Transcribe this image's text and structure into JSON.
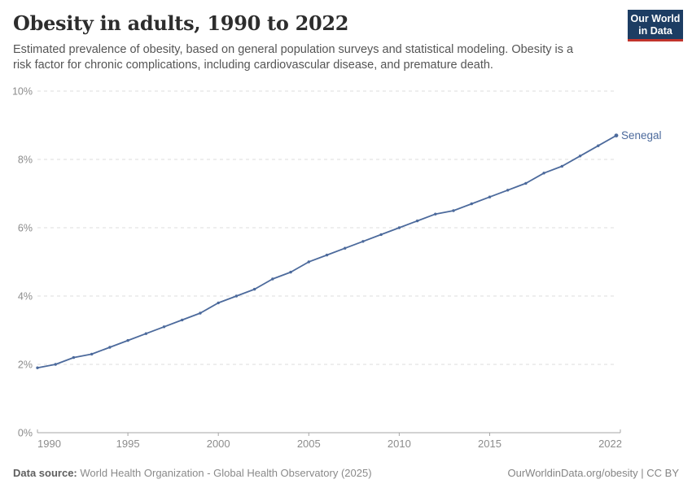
{
  "header": {
    "title": "Obesity in adults, 1990 to 2022",
    "subtitle_line1": "Estimated prevalence of obesity, based on general population surveys and statistical modeling. Obesity is a",
    "subtitle_line2": "risk factor for chronic complications, including cardiovascular disease, and premature death.",
    "logo_line1": "Our World",
    "logo_line2": "in Data"
  },
  "footer": {
    "source_label": "Data source:",
    "source_text": "World Health Organization - Global Health Observatory (2025)",
    "credit_text": "OurWorldinData.org/obesity | CC BY"
  },
  "colors": {
    "series_line": "#4c6a9c",
    "series_label": "#4c6a9c",
    "grid": "#dedede",
    "axis": "#a6a6a6",
    "tick_text": "#8c8c8c",
    "logo_bg": "#1d3d63",
    "logo_bar": "#c2342c",
    "title_text": "#2d2d2d",
    "subtitle_text": "#555555",
    "footer_text": "#8a8a8a"
  },
  "chart_data": {
    "type": "line",
    "title": "Obesity in adults, 1990 to 2022",
    "xlabel": "",
    "ylabel": "",
    "xlim": [
      1990,
      2022
    ],
    "ylim": [
      0,
      10
    ],
    "grid": "horizontal dashed gridlines",
    "legend": "label at end of line",
    "x_ticks": [
      1990,
      1995,
      2000,
      2005,
      2010,
      2015,
      2022
    ],
    "y_ticks": [
      {
        "value": 0,
        "label": "0%"
      },
      {
        "value": 2,
        "label": "2%"
      },
      {
        "value": 4,
        "label": "4%"
      },
      {
        "value": 6,
        "label": "6%"
      },
      {
        "value": 8,
        "label": "8%"
      },
      {
        "value": 10,
        "label": "10%"
      }
    ],
    "series": [
      {
        "name": "Senegal",
        "x": [
          1990,
          1991,
          1992,
          1993,
          1994,
          1995,
          1996,
          1997,
          1998,
          1999,
          2000,
          2001,
          2002,
          2003,
          2004,
          2005,
          2006,
          2007,
          2008,
          2009,
          2010,
          2011,
          2012,
          2013,
          2014,
          2015,
          2016,
          2017,
          2018,
          2019,
          2020,
          2021,
          2022
        ],
        "values": [
          1.9,
          2.0,
          2.2,
          2.3,
          2.5,
          2.7,
          2.9,
          3.1,
          3.3,
          3.5,
          3.8,
          4.0,
          4.2,
          4.5,
          4.7,
          5.0,
          5.2,
          5.4,
          5.6,
          5.8,
          6.0,
          6.2,
          6.4,
          6.5,
          6.7,
          6.9,
          7.1,
          7.3,
          7.6,
          7.8,
          8.1,
          8.4,
          8.7
        ]
      }
    ]
  }
}
